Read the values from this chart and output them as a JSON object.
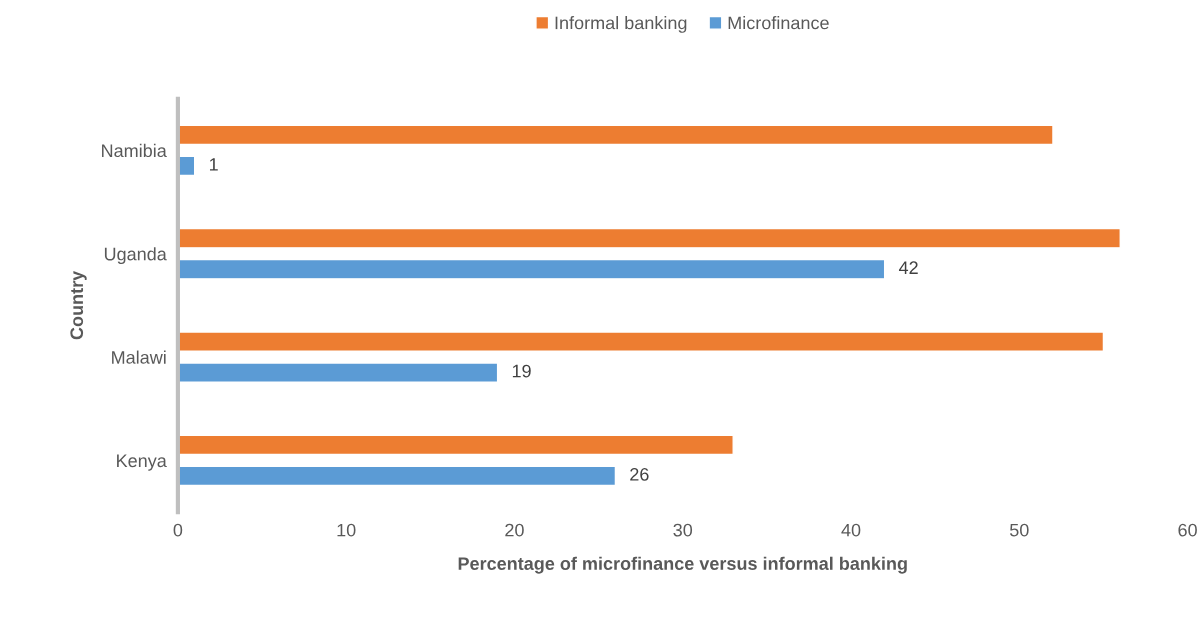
{
  "chart_data": {
    "type": "bar",
    "orientation": "horizontal",
    "categories": [
      "Namibia",
      "Uganda",
      "Malawi",
      "Kenya"
    ],
    "series": [
      {
        "name": "Informal banking",
        "color": "#ed7d31",
        "values": [
          52,
          56,
          55,
          33
        ]
      },
      {
        "name": "Microfinance",
        "color": "#5b9bd5",
        "values": [
          1,
          42,
          19,
          26
        ],
        "value_labels": [
          "1",
          "42",
          "19",
          "26"
        ]
      }
    ],
    "xlabel": "Percentage of microfinance versus informal banking",
    "ylabel": "Country",
    "xlim": [
      0,
      60
    ],
    "xticks": [
      0,
      10,
      20,
      30,
      40,
      50,
      60
    ],
    "grid": false,
    "legend": "top"
  }
}
